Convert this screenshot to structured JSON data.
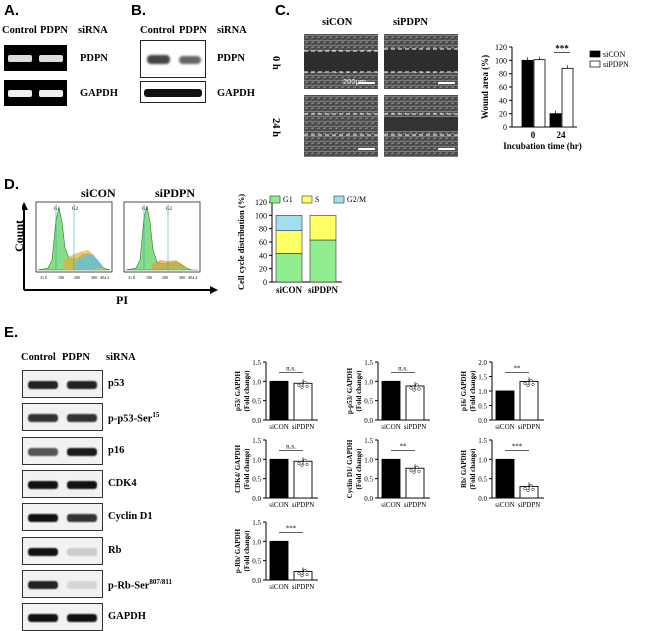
{
  "panels": {
    "A": "A.",
    "B": "B.",
    "C": "C.",
    "D": "D.",
    "E": "E."
  },
  "panelA": {
    "lanes": [
      "Control",
      "PDPN"
    ],
    "sirna": "siRNA",
    "rows": [
      "PDPN",
      "GAPDH"
    ]
  },
  "panelB": {
    "lanes": [
      "Control",
      "PDPN"
    ],
    "sirna": "siRNA",
    "rows": [
      "PDPN",
      "GAPDH"
    ]
  },
  "panelC": {
    "cols": [
      "siCON",
      "siPDPN"
    ],
    "rows": [
      "0 h",
      "24 h"
    ],
    "scalebar": "200μm",
    "chart": {
      "type": "bar",
      "ylabel": "Wound area (%)",
      "xlabel": "Incubation time (hr)",
      "categories": [
        "0",
        "24"
      ],
      "ylim": [
        0,
        120
      ],
      "yticks": [
        "0",
        "20",
        "40",
        "60",
        "80",
        "100",
        "120"
      ],
      "series": [
        {
          "name": "siCON",
          "values": [
            100,
            20
          ],
          "color": "#000000"
        },
        {
          "name": "siPDPN",
          "values": [
            101,
            88
          ],
          "color": "#ffffff"
        }
      ],
      "sig": "***"
    }
  },
  "panelD": {
    "titles": [
      "siCON",
      "siPDPN"
    ],
    "ylabel": "Count",
    "xlabel": "PI",
    "peaks": [
      "G1",
      "G2"
    ],
    "chart": {
      "type": "bar",
      "ylabel": "Cell cycle distribution  (%)",
      "categories": [
        "siCON",
        "siPDPN"
      ],
      "ylim": [
        0,
        120
      ],
      "yticks": [
        "0",
        "20",
        "40",
        "60",
        "80",
        "100",
        "120"
      ],
      "series": [
        {
          "name": "G1",
          "values": [
            43,
            63
          ],
          "color": "#90ee90"
        },
        {
          "name": "S",
          "values": [
            34,
            37
          ],
          "color": "#ffff66"
        },
        {
          "name": "G2/M",
          "values": [
            23,
            0
          ],
          "color": "#a0e0ee"
        }
      ]
    }
  },
  "panelE": {
    "lanes": [
      "Control",
      "PDPN"
    ],
    "sirna": "siRNA",
    "blots": [
      {
        "name": "p53",
        "sup": ""
      },
      {
        "name": "p-p53-Ser",
        "sup": "15"
      },
      {
        "name": "p16",
        "sup": ""
      },
      {
        "name": "CDK4",
        "sup": ""
      },
      {
        "name": "Cyclin D1",
        "sup": ""
      },
      {
        "name": "Rb",
        "sup": ""
      },
      {
        "name": "p-Rb-Ser",
        "sup": "807/811"
      },
      {
        "name": "GAPDH",
        "sup": ""
      }
    ],
    "chart_data": [
      {
        "type": "bar",
        "ylabel": "p53/ GAPDH",
        "ylabel2": "(Fold change)",
        "categories": [
          "siCON",
          "siPDPN"
        ],
        "values": [
          1.0,
          0.95
        ],
        "ylim": [
          0,
          1.5
        ],
        "yticks": [
          "0.0",
          "0.5",
          "1.0",
          "1.5"
        ],
        "sig": "n.s."
      },
      {
        "type": "bar",
        "ylabel": "p-p53/ GAPDH",
        "ylabel2": "(Fold change)",
        "categories": [
          "siCON",
          "siPDPN"
        ],
        "values": [
          1.0,
          0.88
        ],
        "ylim": [
          0,
          1.5
        ],
        "yticks": [
          "0.0",
          "0.5",
          "1.0",
          "1.5"
        ],
        "sig": "n.s."
      },
      {
        "type": "bar",
        "ylabel": "p16/ GAPDH",
        "ylabel2": "(Fold change)",
        "categories": [
          "siCON",
          "siPDPN"
        ],
        "values": [
          1.0,
          1.33
        ],
        "ylim": [
          0,
          2.0
        ],
        "yticks": [
          "0.0",
          "0.5",
          "1.0",
          "1.5",
          "2.0"
        ],
        "sig": "**"
      },
      {
        "type": "bar",
        "ylabel": "CDK4/ GAPDH",
        "ylabel2": "(Fold change)",
        "categories": [
          "siCON",
          "siPDPN"
        ],
        "values": [
          1.0,
          0.95
        ],
        "ylim": [
          0,
          1.5
        ],
        "yticks": [
          "0.0",
          "0.5",
          "1.0",
          "1.5"
        ],
        "sig": "n.s."
      },
      {
        "type": "bar",
        "ylabel": "Cyclin D1/ GAPDH",
        "ylabel2": "(Fold change)",
        "categories": [
          "siCON",
          "siPDPN"
        ],
        "values": [
          1.0,
          0.77
        ],
        "ylim": [
          0,
          1.5
        ],
        "yticks": [
          "0.0",
          "0.5",
          "1.0",
          "1.5"
        ],
        "sig": "**"
      },
      {
        "type": "bar",
        "ylabel": "Rb/ GAPDH",
        "ylabel2": "(Fold change)",
        "categories": [
          "siCON",
          "siPDPN"
        ],
        "values": [
          1.0,
          0.3
        ],
        "ylim": [
          0,
          1.5
        ],
        "yticks": [
          "0.0",
          "0.5",
          "1.0",
          "1.5"
        ],
        "sig": "***"
      },
      {
        "type": "bar",
        "ylabel": "p-Rb/ GAPDH",
        "ylabel2": "(Fold change)",
        "categories": [
          "siCON",
          "siPDPN"
        ],
        "values": [
          1.0,
          0.22
        ],
        "ylim": [
          0,
          1.5
        ],
        "yticks": [
          "0.0",
          "0.5",
          "1.0",
          "1.5"
        ],
        "sig": "***"
      }
    ]
  }
}
